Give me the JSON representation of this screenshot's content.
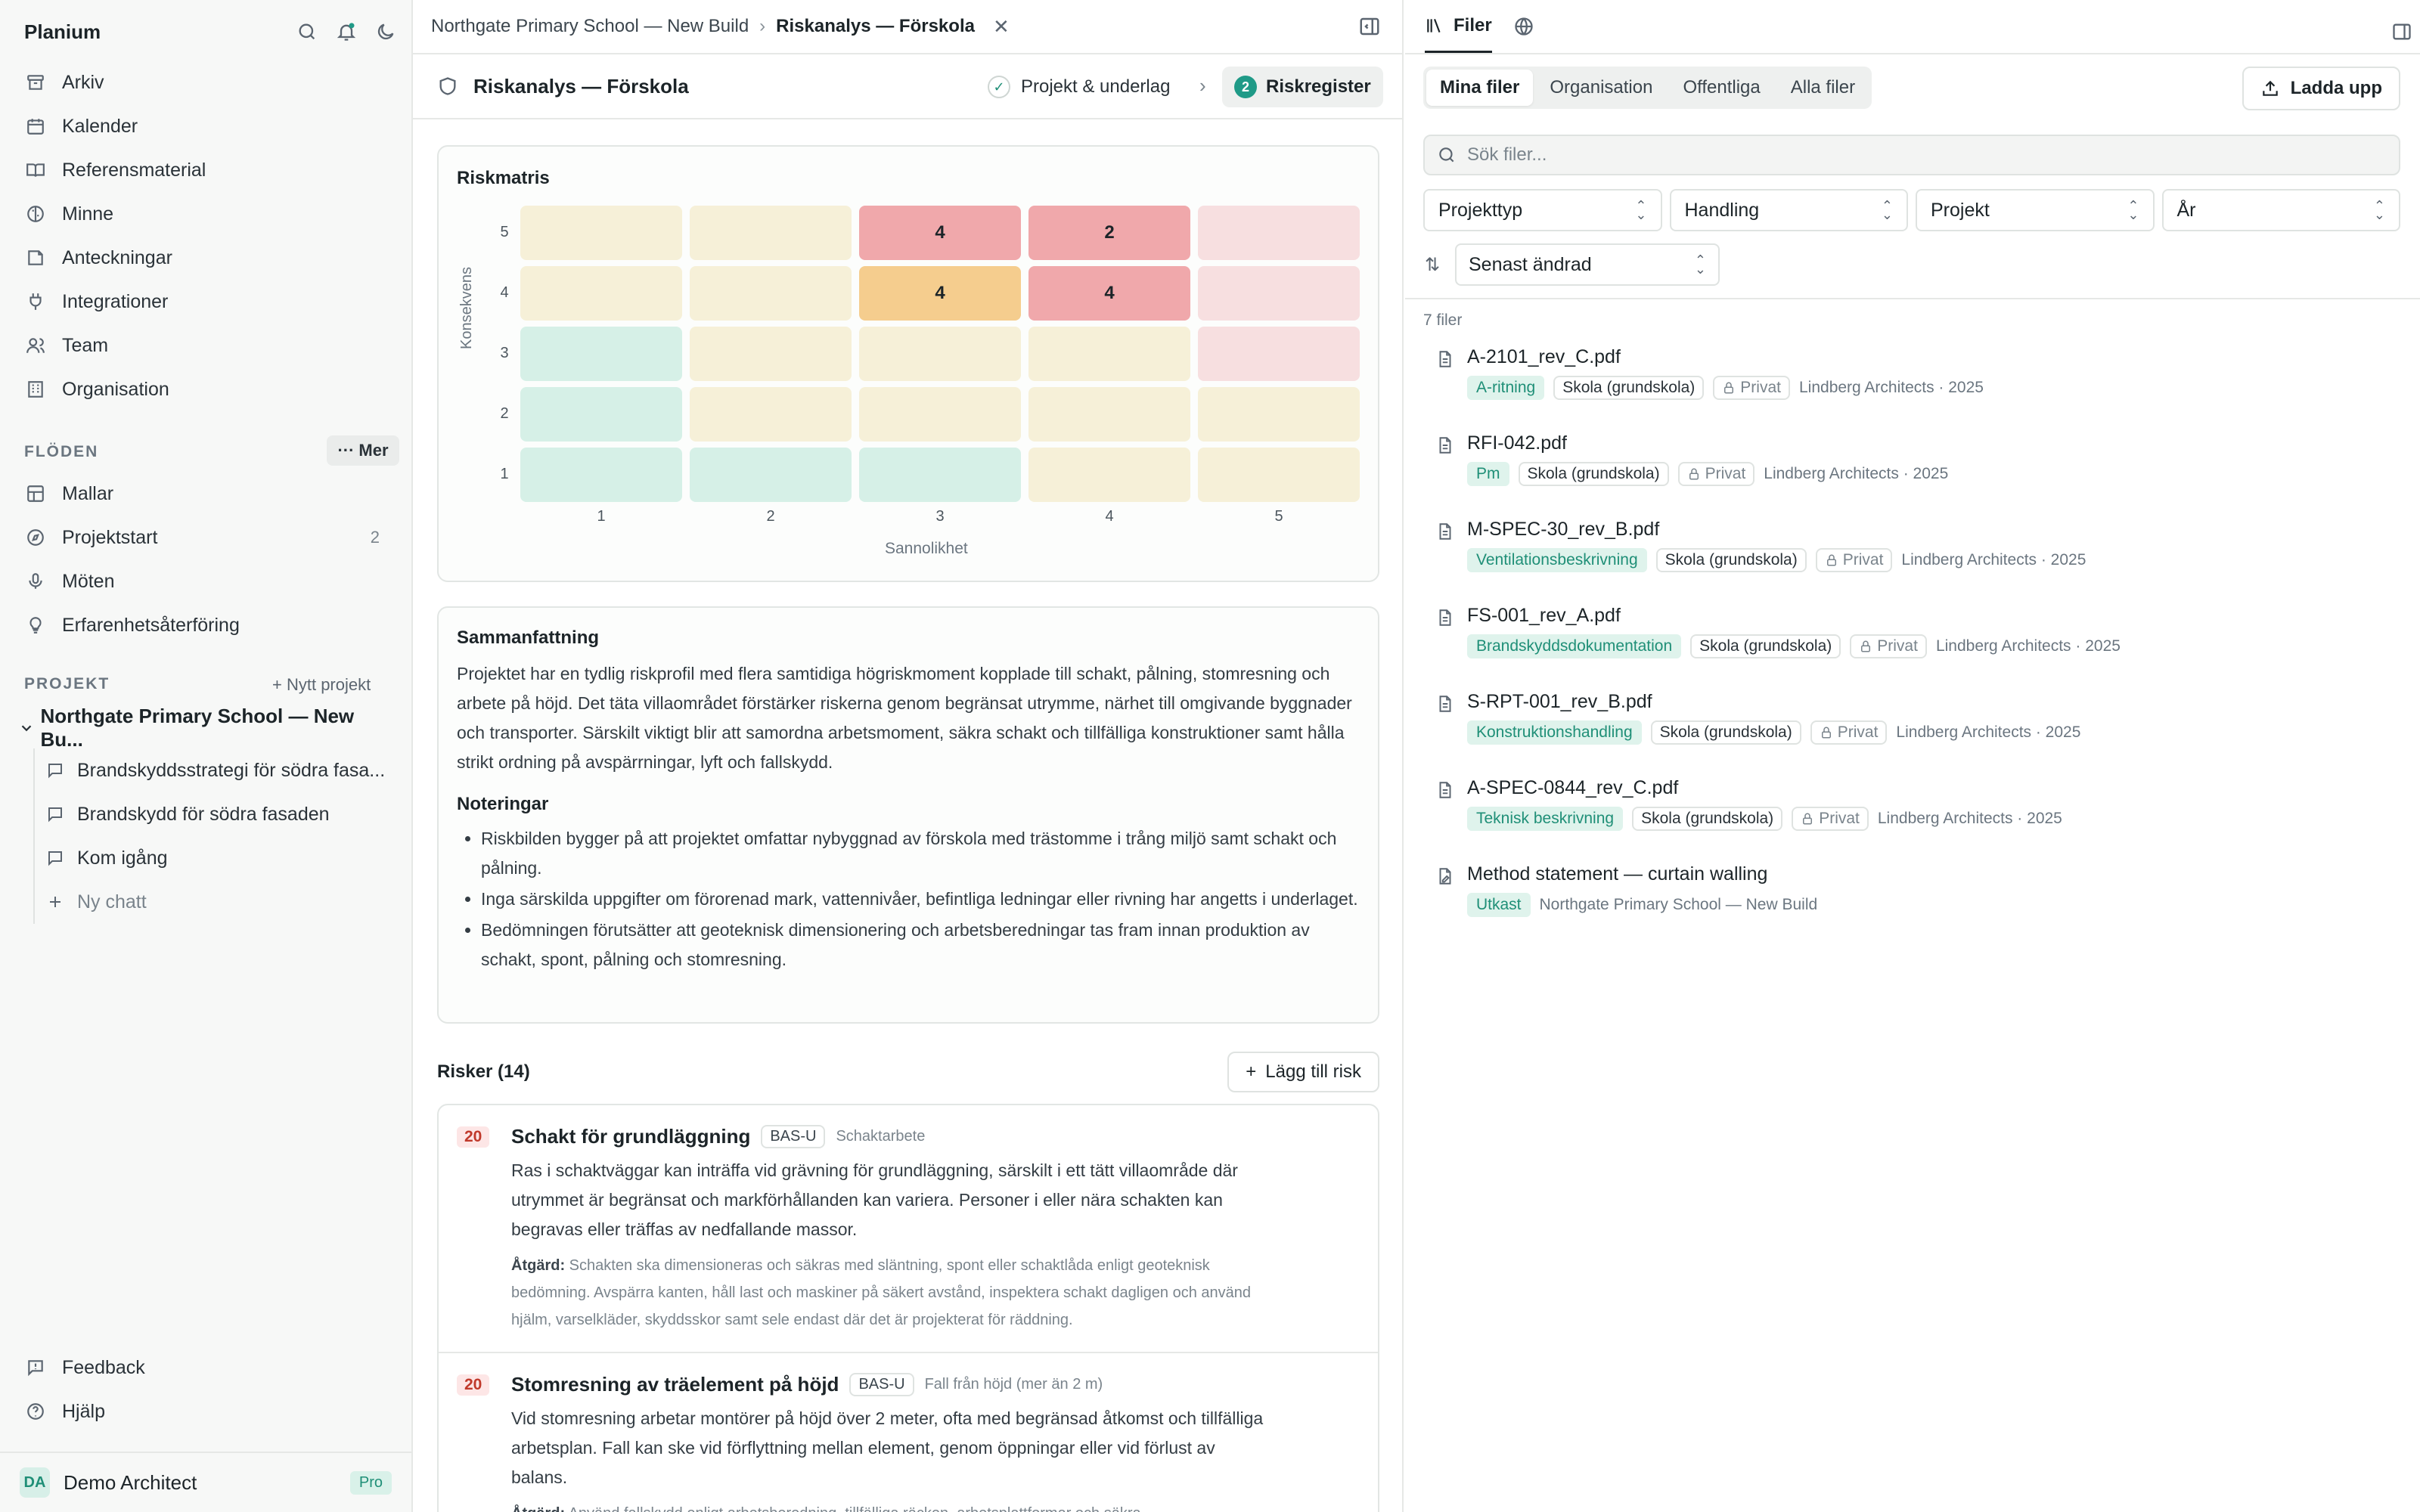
{
  "sidebar": {
    "brand": "Planium",
    "nav": [
      {
        "label": "Arkiv",
        "icon": "archive-icon"
      },
      {
        "label": "Kalender",
        "icon": "calendar-icon"
      },
      {
        "label": "Referensmaterial",
        "icon": "book-icon"
      },
      {
        "label": "Minne",
        "icon": "brain-icon"
      },
      {
        "label": "Anteckningar",
        "icon": "note-icon"
      },
      {
        "label": "Integrationer",
        "icon": "plug-icon"
      },
      {
        "label": "Team",
        "icon": "team-icon"
      },
      {
        "label": "Organisation",
        "icon": "building-icon"
      }
    ],
    "flows_label": "FLÖDEN",
    "more_label": "Mer",
    "flows": [
      {
        "label": "Mallar",
        "icon": "template-icon",
        "count": ""
      },
      {
        "label": "Projektstart",
        "icon": "compass-icon",
        "count": "2"
      },
      {
        "label": "Möten",
        "icon": "microphone-icon",
        "count": ""
      },
      {
        "label": "Erfarenhetsåterföring",
        "icon": "lightbulb-icon",
        "count": ""
      }
    ],
    "projects_label": "PROJEKT",
    "new_project_label": "Nytt projekt",
    "project_name": "Northgate Primary School — New Bu...",
    "chats": [
      "Brandskyddsstrategi för södra fasa...",
      "Brandskydd för södra fasaden",
      "Kom igång"
    ],
    "new_chat_label": "Ny chatt",
    "footer": [
      "Feedback",
      "Hjälp"
    ],
    "user": {
      "initials": "DA",
      "name": "Demo Architect",
      "plan": "Pro"
    }
  },
  "middle": {
    "breadcrumb_parent": "Northgate Primary School — New Build",
    "breadcrumb_current": "Riskanalys — Förskola",
    "doc_title": "Riskanalys — Förskola",
    "step1_label": "Projekt & underlag",
    "step2_num": "2",
    "step2_label": "Riskregister",
    "matrix": {
      "title": "Riskmatris",
      "ylabel": "Konsekvens",
      "xlabel": "Sannolikhet",
      "yticks": [
        "5",
        "4",
        "3",
        "2",
        "1"
      ],
      "xticks": [
        "1",
        "2",
        "3",
        "4",
        "5"
      ],
      "rows": [
        [
          {
            "v": "",
            "c": "#f6f0d8"
          },
          {
            "v": "",
            "c": "#f6f0d8"
          },
          {
            "v": "4",
            "c": "#f0a8ab"
          },
          {
            "v": "2",
            "c": "#f0a8ab"
          },
          {
            "v": "",
            "c": "#f7dfe0"
          }
        ],
        [
          {
            "v": "",
            "c": "#f6f0d8"
          },
          {
            "v": "",
            "c": "#f6f0d8"
          },
          {
            "v": "4",
            "c": "#f5cd8e"
          },
          {
            "v": "4",
            "c": "#f0a8ab"
          },
          {
            "v": "",
            "c": "#f7dfe0"
          }
        ],
        [
          {
            "v": "",
            "c": "#d6f0e7"
          },
          {
            "v": "",
            "c": "#f6f0d8"
          },
          {
            "v": "",
            "c": "#f6f0d8"
          },
          {
            "v": "",
            "c": "#f6f0d8"
          },
          {
            "v": "",
            "c": "#f7dfe0"
          }
        ],
        [
          {
            "v": "",
            "c": "#d6f0e7"
          },
          {
            "v": "",
            "c": "#f6f0d8"
          },
          {
            "v": "",
            "c": "#f6f0d8"
          },
          {
            "v": "",
            "c": "#f6f0d8"
          },
          {
            "v": "",
            "c": "#f6f0d8"
          }
        ],
        [
          {
            "v": "",
            "c": "#d6f0e7"
          },
          {
            "v": "",
            "c": "#d6f0e7"
          },
          {
            "v": "",
            "c": "#d6f0e7"
          },
          {
            "v": "",
            "c": "#f6f0d8"
          },
          {
            "v": "",
            "c": "#f6f0d8"
          }
        ]
      ]
    },
    "summary": {
      "title": "Sammanfattning",
      "text": "Projektet har en tydlig riskprofil med flera samtidiga högriskmoment kopplade till schakt, pålning, stomresning och arbete på höjd. Det täta villaområdet förstärker riskerna genom begränsat utrymme, närhet till omgivande byggnader och transporter. Särskilt viktigt blir att samordna arbetsmoment, säkra schakt och tillfälliga konstruktioner samt hålla strikt ordning på avspärrningar, lyft och fallskydd.",
      "notes_title": "Noteringar",
      "notes": [
        "Riskbilden bygger på att projektet omfattar nybyggnad av förskola med trästomme i trång miljö samt schakt och pålning.",
        "Inga särskilda uppgifter om förorenad mark, vattennivåer, befintliga ledningar eller rivning har angetts i underlaget.",
        "Bedömningen förutsätter att geoteknisk dimensionering och arbetsberedningar tas fram innan produktion av schakt, spont, pålning och stomresning."
      ]
    },
    "risks_title": "Risker (14)",
    "add_risk_label": "Lägg till risk",
    "risks": [
      {
        "score": "20",
        "title": "Schakt för grundläggning",
        "tag": "BAS-U",
        "category": "Schaktarbete",
        "desc": "Ras i schaktväggar kan inträffa vid grävning för grundläggning, särskilt i ett tätt villaområde där utrymmet är begränsat och markförhållanden kan variera. Personer i eller nära schakten kan begravas eller träffas av nedfallande massor.",
        "action_label": "Åtgärd:",
        "action": "Schakten ska dimensioneras och säkras med släntning, spont eller schaktlåda enligt geoteknisk bedömning. Avspärra kanten, håll last och maskiner på säkert avstånd, inspektera schakt dagligen och använd hjälm, varselkläder, skyddsskor samt sele endast där det är projekterat för räddning."
      },
      {
        "score": "20",
        "title": "Stomresning av träelement på höjd",
        "tag": "BAS-U",
        "category": "Fall från höjd (mer än 2 m)",
        "desc": "Vid stomresning arbetar montörer på höjd över 2 meter, ofta med begränsad åtkomst och tillfälliga arbetsplan. Fall kan ske vid förflyttning mellan element, genom öppningar eller vid förlust av balans.",
        "action_label": "Åtgärd:",
        "action": "Använd fallskydd enligt arbetsberedning, tillfälliga räcken, arbetsplattformar och säkra"
      }
    ]
  },
  "right": {
    "tab_files": "Filer",
    "filters": [
      "Mina filer",
      "Organisation",
      "Offentliga",
      "Alla filer"
    ],
    "upload_label": "Ladda upp",
    "search_placeholder": "Sök filer...",
    "selects": [
      "Projekttyp",
      "Handling",
      "Projekt",
      "År"
    ],
    "sort_label": "Senast ändrad",
    "count": "7 filer",
    "files": [
      {
        "name": "A-2101_rev_C.pdf",
        "type": "A-ritning",
        "cat": "Skola (grundskola)",
        "priv": "Privat",
        "meta": "Lindberg Architects · 2025",
        "icon": "file-icon"
      },
      {
        "name": "RFI-042.pdf",
        "type": "Pm",
        "cat": "Skola (grundskola)",
        "priv": "Privat",
        "meta": "Lindberg Architects · 2025",
        "icon": "file-icon"
      },
      {
        "name": "M-SPEC-30_rev_B.pdf",
        "type": "Ventilationsbeskrivning",
        "cat": "Skola (grundskola)",
        "priv": "Privat",
        "meta": "Lindberg Architects · 2025",
        "icon": "file-icon"
      },
      {
        "name": "FS-001_rev_A.pdf",
        "type": "Brandskyddsdokumentation",
        "cat": "Skola (grundskola)",
        "priv": "Privat",
        "meta": "Lindberg Architects · 2025",
        "icon": "file-icon"
      },
      {
        "name": "S-RPT-001_rev_B.pdf",
        "type": "Konstruktionshandling",
        "cat": "Skola (grundskola)",
        "priv": "Privat",
        "meta": "Lindberg Architects · 2025",
        "icon": "file-icon"
      },
      {
        "name": "A-SPEC-0844_rev_C.pdf",
        "type": "Teknisk beskrivning",
        "cat": "Skola (grundskola)",
        "priv": "Privat",
        "meta": "Lindberg Architects · 2025",
        "icon": "file-icon"
      },
      {
        "name": "Method statement — curtain walling",
        "type": "Utkast",
        "cat": "",
        "priv": "",
        "meta": "Northgate Primary School — New Build",
        "icon": "file-edit-icon"
      }
    ]
  }
}
